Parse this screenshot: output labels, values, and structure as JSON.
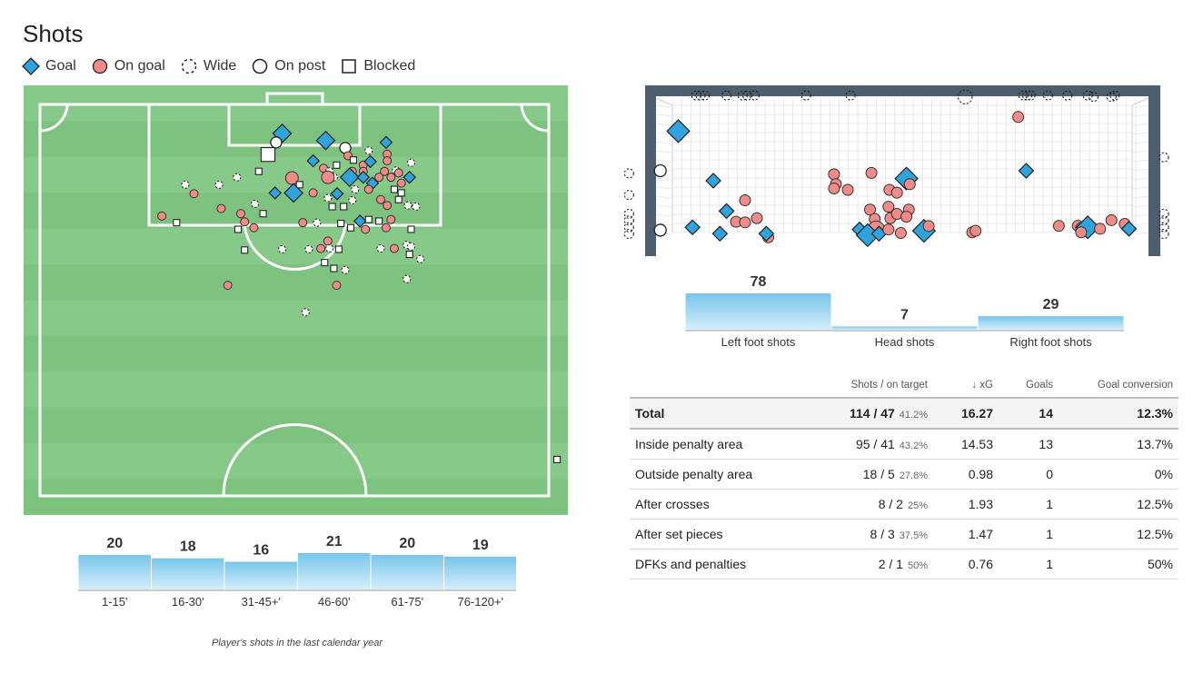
{
  "title": "Shots",
  "legend": [
    {
      "label": "Goal",
      "icon": "diamond-icon"
    },
    {
      "label": "On goal",
      "icon": "circle-icon"
    },
    {
      "label": "Wide",
      "icon": "dashed-circle-icon"
    },
    {
      "label": "On post",
      "icon": "hollow-circle-icon"
    },
    {
      "label": "Blocked",
      "icon": "square-icon"
    }
  ],
  "colors": {
    "goal": "#2ea3dc",
    "on_goal": "#f08b88",
    "pitch": "#7dc37f",
    "pitch_stripe": "#86c988",
    "net_frame": "#4d5f6e",
    "bar_top": "#78c5ea",
    "bar_bottom": "#d4eefa"
  },
  "caption": "Player's shots in the last calendar year",
  "chart_data": [
    {
      "type": "bar",
      "title": "",
      "categories": [
        "1-15'",
        "16-30'",
        "31-45+'",
        "46-60'",
        "61-75'",
        "76-120+'"
      ],
      "values": [
        20,
        18,
        16,
        21,
        20,
        19
      ]
    },
    {
      "type": "bar",
      "title": "",
      "categories": [
        "Left foot shots",
        "Head shots",
        "Right foot shots"
      ],
      "values": [
        78,
        7,
        29
      ]
    },
    {
      "type": "table",
      "columns": [
        "",
        "Shots / on target",
        "↓ xG",
        "Goals",
        "Goal conversion"
      ],
      "rows": [
        {
          "label": "Total",
          "shots": "114 / 47",
          "pct": "41.2%",
          "xg": "16.27",
          "goals": "14",
          "conversion": "12.3%"
        },
        {
          "label": "Inside penalty area",
          "shots": "95 / 41",
          "pct": "43.2%",
          "xg": "14.53",
          "goals": "13",
          "conversion": "13.7%"
        },
        {
          "label": "Outside penalty area",
          "shots": "18 / 5",
          "pct": "27.8%",
          "xg": "0.98",
          "goals": "0",
          "conversion": "0%"
        },
        {
          "label": "After crosses",
          "shots": "8 / 2",
          "pct": "25%",
          "xg": "1.93",
          "goals": "1",
          "conversion": "12.5%"
        },
        {
          "label": "After set pieces",
          "shots": "8 / 3",
          "pct": "37.5%",
          "xg": "1.47",
          "goals": "1",
          "conversion": "12.5%"
        },
        {
          "label": "DFKs and penalties",
          "shots": "2 / 1",
          "pct": "50%",
          "xg": "0.76",
          "goals": "1",
          "conversion": "50%"
        }
      ]
    },
    {
      "type": "scatter",
      "title": "",
      "description_units": "pitch: x across 0-100 (left to right), y 0-100 from goal line",
      "points": [
        {
          "x": 47.5,
          "y": 7.4,
          "outcome": "goal",
          "big": true
        },
        {
          "x": 55.5,
          "y": 9.2,
          "outcome": "goal",
          "big": true
        },
        {
          "x": 46.4,
          "y": 9.7,
          "outcome": "post"
        },
        {
          "x": 44.9,
          "y": 12.8,
          "outcome": "blocked",
          "big": true
        },
        {
          "x": 66.6,
          "y": 9.7,
          "outcome": "goal"
        },
        {
          "x": 59.1,
          "y": 11.1,
          "outcome": "post"
        },
        {
          "x": 53.2,
          "y": 14.4,
          "outcome": "goal"
        },
        {
          "x": 59.6,
          "y": 13.1,
          "outcome": "on_goal"
        },
        {
          "x": 63.4,
          "y": 11.8,
          "outcome": "wide"
        },
        {
          "x": 66.8,
          "y": 12.7,
          "outcome": "on_goal"
        },
        {
          "x": 60.6,
          "y": 14.2,
          "outcome": "blocked"
        },
        {
          "x": 57.5,
          "y": 15.5,
          "outcome": "blocked"
        },
        {
          "x": 62.4,
          "y": 15.5,
          "outcome": "on_goal"
        },
        {
          "x": 63.7,
          "y": 14.6,
          "outcome": "goal"
        },
        {
          "x": 66.8,
          "y": 14.4,
          "outcome": "on_goal"
        },
        {
          "x": 71.2,
          "y": 14.9,
          "outcome": "wide"
        },
        {
          "x": 55.1,
          "y": 16.3,
          "outcome": "on_goal"
        },
        {
          "x": 56.2,
          "y": 17.1,
          "outcome": "wide"
        },
        {
          "x": 60.4,
          "y": 17.1,
          "outcome": "on_goal"
        },
        {
          "x": 57.0,
          "y": 18.6,
          "outcome": "wide"
        },
        {
          "x": 68.4,
          "y": 16.9,
          "outcome": "wide"
        },
        {
          "x": 43.2,
          "y": 17.1,
          "outcome": "blocked"
        },
        {
          "x": 62.4,
          "y": 17.1,
          "outcome": "on_goal"
        },
        {
          "x": 66.3,
          "y": 17.1,
          "outcome": "on_goal"
        },
        {
          "x": 68.9,
          "y": 17.5,
          "outcome": "on_goal"
        },
        {
          "x": 55.9,
          "y": 18.6,
          "outcome": "on_goal",
          "big": true
        },
        {
          "x": 59.9,
          "y": 18.6,
          "outcome": "goal",
          "big": true
        },
        {
          "x": 62.4,
          "y": 18.6,
          "outcome": "goal"
        },
        {
          "x": 65.3,
          "y": 18.6,
          "outcome": "on_goal"
        },
        {
          "x": 67.5,
          "y": 18.6,
          "outcome": "on_goal"
        },
        {
          "x": 70.9,
          "y": 18.6,
          "outcome": "goal"
        },
        {
          "x": 49.3,
          "y": 18.8,
          "outcome": "on_goal",
          "big": true
        },
        {
          "x": 39.2,
          "y": 18.6,
          "outcome": "wide"
        },
        {
          "x": 35.9,
          "y": 20.5,
          "outcome": "wide"
        },
        {
          "x": 29.7,
          "y": 20.5,
          "outcome": "wide"
        },
        {
          "x": 64.1,
          "y": 20.1,
          "outcome": "goal"
        },
        {
          "x": 69.4,
          "y": 20.1,
          "outcome": "on_goal"
        },
        {
          "x": 50.7,
          "y": 20.5,
          "outcome": "blocked"
        },
        {
          "x": 60.9,
          "y": 21.7,
          "outcome": "wide"
        },
        {
          "x": 63.4,
          "y": 21.7,
          "outcome": "on_goal"
        },
        {
          "x": 68.1,
          "y": 21.7,
          "outcome": "blocked"
        },
        {
          "x": 46.2,
          "y": 22.6,
          "outcome": "goal"
        },
        {
          "x": 49.6,
          "y": 22.6,
          "outcome": "goal",
          "big": true
        },
        {
          "x": 57.6,
          "y": 22.8,
          "outcome": "goal"
        },
        {
          "x": 53.2,
          "y": 22.6,
          "outcome": "on_goal"
        },
        {
          "x": 69.4,
          "y": 22.6,
          "outcome": "blocked"
        },
        {
          "x": 31.3,
          "y": 22.8,
          "outcome": "on_goal"
        },
        {
          "x": 55.9,
          "y": 23.9,
          "outcome": "wide"
        },
        {
          "x": 60.4,
          "y": 24.5,
          "outcome": "wide"
        },
        {
          "x": 65.6,
          "y": 24.3,
          "outcome": "on_goal"
        },
        {
          "x": 68.9,
          "y": 24.3,
          "outcome": "blocked"
        },
        {
          "x": 70.6,
          "y": 25.8,
          "outcome": "wide"
        },
        {
          "x": 72.1,
          "y": 26.1,
          "outcome": "wide"
        },
        {
          "x": 56.7,
          "y": 26.1,
          "outcome": "blocked"
        },
        {
          "x": 58.8,
          "y": 26.1,
          "outcome": "blocked"
        },
        {
          "x": 66.8,
          "y": 25.8,
          "outcome": "on_goal"
        },
        {
          "x": 36.3,
          "y": 26.6,
          "outcome": "on_goal"
        },
        {
          "x": 42.5,
          "y": 25.4,
          "outcome": "wide"
        },
        {
          "x": 39.9,
          "y": 27.9,
          "outcome": "on_goal"
        },
        {
          "x": 44.0,
          "y": 27.9,
          "outcome": "blocked"
        },
        {
          "x": 25.4,
          "y": 28.5,
          "outcome": "on_goal"
        },
        {
          "x": 28.1,
          "y": 30.2,
          "outcome": "blocked"
        },
        {
          "x": 40.6,
          "y": 30.0,
          "outcome": "on_goal"
        },
        {
          "x": 42.3,
          "y": 31.5,
          "outcome": "on_goal"
        },
        {
          "x": 51.3,
          "y": 30.2,
          "outcome": "on_goal"
        },
        {
          "x": 53.9,
          "y": 30.2,
          "outcome": "wide"
        },
        {
          "x": 58.3,
          "y": 30.4,
          "outcome": "blocked"
        },
        {
          "x": 61.8,
          "y": 29.8,
          "outcome": "goal"
        },
        {
          "x": 63.4,
          "y": 29.4,
          "outcome": "blocked"
        },
        {
          "x": 65.3,
          "y": 29.8,
          "outcome": "blocked"
        },
        {
          "x": 67.5,
          "y": 29.4,
          "outcome": "on_goal"
        },
        {
          "x": 60.1,
          "y": 31.5,
          "outcome": "blocked"
        },
        {
          "x": 62.8,
          "y": 31.9,
          "outcome": "on_goal"
        },
        {
          "x": 66.6,
          "y": 31.5,
          "outcome": "on_goal"
        },
        {
          "x": 71.2,
          "y": 31.9,
          "outcome": "blocked"
        },
        {
          "x": 39.4,
          "y": 31.9,
          "outcome": "blocked"
        },
        {
          "x": 55.9,
          "y": 34.9,
          "outcome": "on_goal"
        },
        {
          "x": 54.6,
          "y": 36.8,
          "outcome": "on_goal"
        },
        {
          "x": 56.2,
          "y": 36.8,
          "outcome": "wide"
        },
        {
          "x": 40.6,
          "y": 37.2,
          "outcome": "blocked"
        },
        {
          "x": 47.5,
          "y": 37.0,
          "outcome": "wide"
        },
        {
          "x": 52.4,
          "y": 37.0,
          "outcome": "wide"
        },
        {
          "x": 57.9,
          "y": 37.0,
          "outcome": "blocked"
        },
        {
          "x": 65.6,
          "y": 36.8,
          "outcome": "wide"
        },
        {
          "x": 68.1,
          "y": 36.8,
          "outcome": "on_goal"
        },
        {
          "x": 70.4,
          "y": 35.9,
          "outcome": "wide"
        },
        {
          "x": 71.2,
          "y": 36.3,
          "outcome": "wide"
        },
        {
          "x": 70.9,
          "y": 38.3,
          "outcome": "blocked"
        },
        {
          "x": 72.9,
          "y": 39.5,
          "outcome": "wide"
        },
        {
          "x": 55.3,
          "y": 40.4,
          "outcome": "blocked"
        },
        {
          "x": 57.0,
          "y": 41.9,
          "outcome": "blocked"
        },
        {
          "x": 59.1,
          "y": 42.3,
          "outcome": "wide"
        },
        {
          "x": 70.4,
          "y": 44.6,
          "outcome": "wide"
        },
        {
          "x": 37.5,
          "y": 46.2,
          "outcome": "on_goal"
        },
        {
          "x": 57.5,
          "y": 46.2,
          "outcome": "on_goal"
        },
        {
          "x": 51.8,
          "y": 53.1,
          "outcome": "wide"
        },
        {
          "x": 98.0,
          "y": 90.7,
          "outcome": "blocked"
        }
      ]
    },
    {
      "type": "scatter",
      "title": "",
      "description_units": "goal mouth: x 0-100 post to post, y 0-100 ground to crossbar",
      "points": [
        {
          "x": 2.4,
          "y": 79.5,
          "outcome": "goal",
          "big": true
        },
        {
          "x": 74.2,
          "y": 90.0,
          "outcome": "on_goal"
        },
        {
          "x": 75.9,
          "y": 50.0,
          "outcome": "goal"
        },
        {
          "x": 9.8,
          "y": 42.6,
          "outcome": "goal"
        },
        {
          "x": 16.5,
          "y": 28.0,
          "outcome": "on_goal"
        },
        {
          "x": 12.6,
          "y": 20.0,
          "outcome": "goal"
        },
        {
          "x": 5.4,
          "y": 7.9,
          "outcome": "goal"
        },
        {
          "x": 14.6,
          "y": 12.1,
          "outcome": "on_goal"
        },
        {
          "x": 16.5,
          "y": 11.6,
          "outcome": "on_goal"
        },
        {
          "x": 19.0,
          "y": 14.7,
          "outcome": "on_goal"
        },
        {
          "x": 21.4,
          "y": 0.5,
          "outcome": "on_goal"
        },
        {
          "x": 11.2,
          "y": 3.2,
          "outcome": "goal"
        },
        {
          "x": 21.0,
          "y": 3.2,
          "outcome": "goal"
        },
        {
          "x": 35.3,
          "y": 47.4,
          "outcome": "on_goal"
        },
        {
          "x": 43.2,
          "y": 48.4,
          "outcome": "on_goal"
        },
        {
          "x": 35.7,
          "y": 40.0,
          "outcome": "on_goal"
        },
        {
          "x": 35.3,
          "y": 36.8,
          "outcome": "on_goal"
        },
        {
          "x": 38.2,
          "y": 35.8,
          "outcome": "on_goal"
        },
        {
          "x": 47.0,
          "y": 35.8,
          "outcome": "on_goal"
        },
        {
          "x": 48.6,
          "y": 33.7,
          "outcome": "on_goal"
        },
        {
          "x": 50.6,
          "y": 44.2,
          "outcome": "goal",
          "big": true
        },
        {
          "x": 51.3,
          "y": 40.0,
          "outcome": "on_goal"
        },
        {
          "x": 51.1,
          "y": 21.1,
          "outcome": "on_goal"
        },
        {
          "x": 42.9,
          "y": 21.1,
          "outcome": "on_goal"
        },
        {
          "x": 46.8,
          "y": 23.2,
          "outcome": "on_goal"
        },
        {
          "x": 47.2,
          "y": 14.7,
          "outcome": "on_goal"
        },
        {
          "x": 43.9,
          "y": 14.2,
          "outcome": "on_goal"
        },
        {
          "x": 48.6,
          "y": 17.9,
          "outcome": "on_goal"
        },
        {
          "x": 50.6,
          "y": 15.8,
          "outcome": "on_goal"
        },
        {
          "x": 44.2,
          "y": 6.3,
          "outcome": "on_goal",
          "big": true
        },
        {
          "x": 40.7,
          "y": 6.3,
          "outcome": "goal"
        },
        {
          "x": 42.4,
          "y": 2.1,
          "outcome": "goal",
          "big": true
        },
        {
          "x": 44.8,
          "y": 3.2,
          "outcome": "goal"
        },
        {
          "x": 46.8,
          "y": 6.3,
          "outcome": "on_goal"
        },
        {
          "x": 49.4,
          "y": 3.7,
          "outcome": "on_goal"
        },
        {
          "x": 54.3,
          "y": 5.3,
          "outcome": "goal",
          "big": true
        },
        {
          "x": 55.3,
          "y": 8.9,
          "outcome": "on_goal"
        },
        {
          "x": 64.5,
          "y": 4.2,
          "outcome": "on_goal"
        },
        {
          "x": 65.2,
          "y": 5.3,
          "outcome": "on_goal"
        },
        {
          "x": 82.8,
          "y": 9.0,
          "outcome": "on_goal"
        },
        {
          "x": 86.8,
          "y": 9.0,
          "outcome": "on_goal"
        },
        {
          "x": 87.5,
          "y": 7.4,
          "outcome": "on_goal"
        },
        {
          "x": 88.9,
          "y": 7.9,
          "outcome": "goal",
          "big": true
        },
        {
          "x": 87.5,
          "y": 4.2,
          "outcome": "on_goal"
        },
        {
          "x": 91.5,
          "y": 6.8,
          "outcome": "on_goal"
        },
        {
          "x": 93.9,
          "y": 13.2,
          "outcome": "on_goal"
        },
        {
          "x": 96.7,
          "y": 10.5,
          "outcome": "on_goal"
        },
        {
          "x": 97.6,
          "y": 6.8,
          "outcome": "goal"
        },
        {
          "x": -1.4,
          "y": 50.0,
          "outcome": "post"
        },
        {
          "x": -1.4,
          "y": 5.8,
          "outcome": "post"
        },
        {
          "x": 90.1,
          "y": 105.0,
          "outcome": "wide"
        },
        {
          "x": 93.9,
          "y": 105.0,
          "outcome": "wide"
        },
        {
          "x": 6.2,
          "y": 106.0,
          "outcome": "wide"
        },
        {
          "x": 7.1,
          "y": 106.0,
          "outcome": "wide"
        },
        {
          "x": 8.0,
          "y": 106.0,
          "outcome": "wide"
        },
        {
          "x": 12.6,
          "y": 106.0,
          "outcome": "wide"
        },
        {
          "x": 16.0,
          "y": 106.0,
          "outcome": "wide"
        },
        {
          "x": 17.0,
          "y": 106.0,
          "outcome": "wide"
        },
        {
          "x": 18.5,
          "y": 106.0,
          "outcome": "wide"
        },
        {
          "x": 29.4,
          "y": 106.0,
          "outcome": "wide"
        },
        {
          "x": 38.8,
          "y": 106.0,
          "outcome": "wide"
        },
        {
          "x": 63.0,
          "y": 105.0,
          "outcome": "wide",
          "big": true
        },
        {
          "x": 75.3,
          "y": 106.0,
          "outcome": "wide"
        },
        {
          "x": 76.1,
          "y": 106.0,
          "outcome": "wide"
        },
        {
          "x": 76.8,
          "y": 106.0,
          "outcome": "wide"
        },
        {
          "x": 80.5,
          "y": 106.0,
          "outcome": "wide"
        },
        {
          "x": 84.6,
          "y": 106.0,
          "outcome": "wide"
        },
        {
          "x": 88.9,
          "y": 106.0,
          "outcome": "wide"
        },
        {
          "x": 94.6,
          "y": 106.0,
          "outcome": "wide"
        },
        {
          "x": -8.0,
          "y": 48.0,
          "outcome": "wide"
        },
        {
          "x": -8.0,
          "y": 32.0,
          "outcome": "wide"
        },
        {
          "x": -8.0,
          "y": 18.0,
          "outcome": "wide"
        },
        {
          "x": -8.0,
          "y": 13.0,
          "outcome": "wide"
        },
        {
          "x": -8.0,
          "y": 8.0,
          "outcome": "wide"
        },
        {
          "x": -8.0,
          "y": 3.0,
          "outcome": "wide"
        },
        {
          "x": 105.0,
          "y": 60.0,
          "outcome": "wide"
        },
        {
          "x": 105.0,
          "y": 18.0,
          "outcome": "wide"
        },
        {
          "x": 105.0,
          "y": 13.0,
          "outcome": "wide"
        },
        {
          "x": 105.0,
          "y": 8.0,
          "outcome": "wide"
        },
        {
          "x": 105.0,
          "y": 3.0,
          "outcome": "wide"
        }
      ]
    }
  ]
}
